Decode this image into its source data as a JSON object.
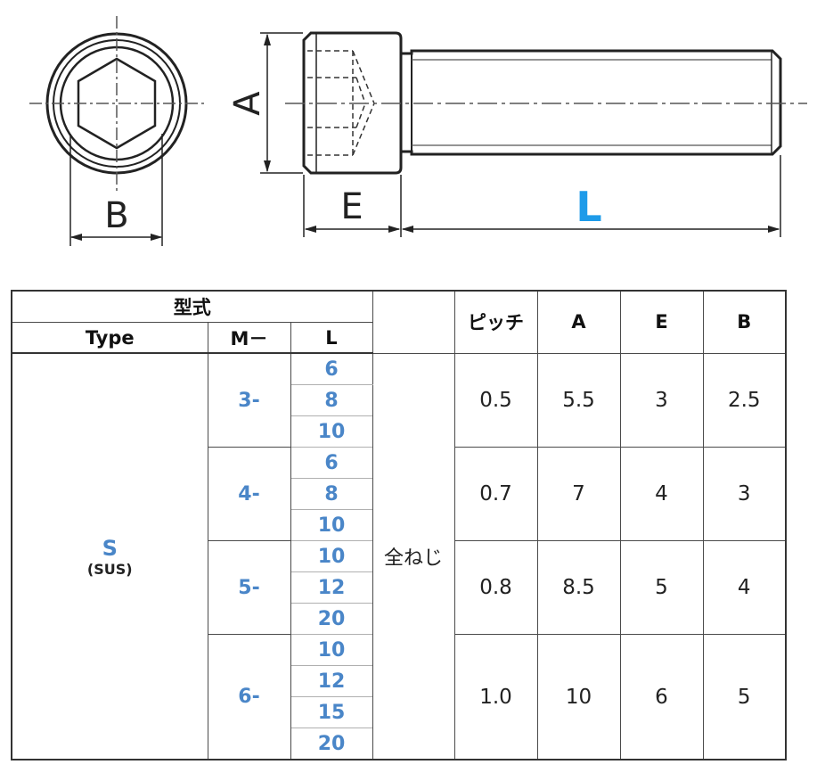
{
  "drawing": {
    "labels": {
      "A": "A",
      "B": "B",
      "E": "E",
      "L": "L"
    },
    "colors": {
      "line": "#222222",
      "centerline": "#555555",
      "L_label": "#1e9be9"
    }
  },
  "table": {
    "header": {
      "model": "型式",
      "type": "Type",
      "m": "M－",
      "l": "L",
      "pitch": "ピッチ",
      "a": "A",
      "e": "E",
      "b": "B"
    },
    "type_name": "S",
    "type_material": "(SUS)",
    "thread_type": "全ねじ",
    "groups": [
      {
        "m": "3-",
        "lengths": [
          "6",
          "8",
          "10"
        ],
        "pitch": "0.5",
        "a": "5.5",
        "e": "3",
        "b": "2.5"
      },
      {
        "m": "4-",
        "lengths": [
          "6",
          "8",
          "10"
        ],
        "pitch": "0.7",
        "a": "7",
        "e": "4",
        "b": "3"
      },
      {
        "m": "5-",
        "lengths": [
          "10",
          "12",
          "20"
        ],
        "pitch": "0.8",
        "a": "8.5",
        "e": "5",
        "b": "4"
      },
      {
        "m": "6-",
        "lengths": [
          "10",
          "12",
          "15",
          "20"
        ],
        "pitch": "1.0",
        "a": "10",
        "e": "6",
        "b": "5"
      }
    ],
    "colors": {
      "blue": "#4a86c8",
      "border": "#4a4a4a"
    }
  }
}
